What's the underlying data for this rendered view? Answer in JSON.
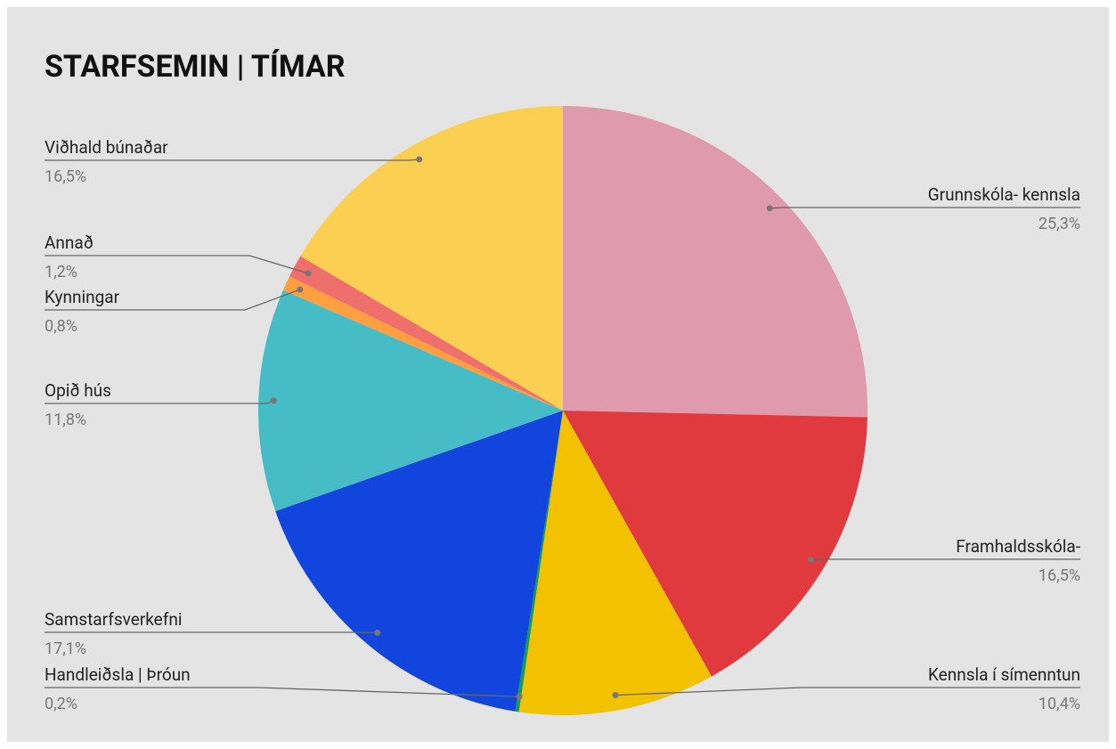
{
  "chart_data": {
    "type": "pie",
    "title": "STARFSEMIN | TÍMAR",
    "categories": [
      "Grunnskóla- kennsla",
      "Framhaldsskóla-",
      "Kennsla í símenntun",
      "Handleiðsla | Þróun",
      "Samstarfsverkefni",
      "Opið hús",
      "Kynningar",
      "Annað",
      "Viðhald búnaðar"
    ],
    "values": [
      25.3,
      16.5,
      10.4,
      0.2,
      17.1,
      11.8,
      0.8,
      1.2,
      16.5
    ],
    "value_labels": [
      "25,3%",
      "16,5%",
      "10,4%",
      "0,2%",
      "17,1%",
      "11,8%",
      "0,8%",
      "1,2%",
      "16,5%"
    ],
    "colors": [
      "#e09aad",
      "#e0393e",
      "#f2c200",
      "#0f9d58",
      "#1145de",
      "#46bdc6",
      "#ff9f40",
      "#ef6f6c",
      "#fbd052"
    ]
  }
}
